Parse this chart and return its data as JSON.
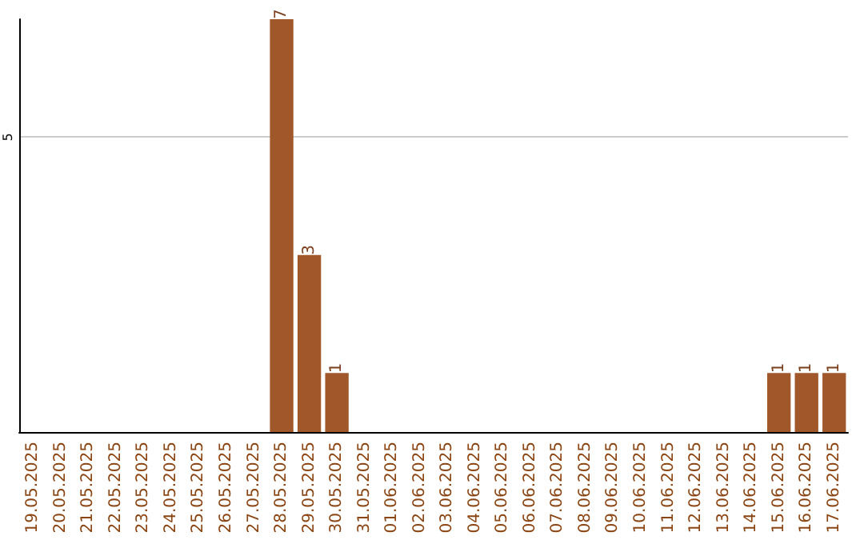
{
  "chart_data": {
    "type": "bar",
    "categories": [
      "19.05.2025",
      "20.05.2025",
      "21.05.2025",
      "22.05.2025",
      "23.05.2025",
      "24.05.2025",
      "25.05.2025",
      "26.05.2025",
      "27.05.2025",
      "28.05.2025",
      "29.05.2025",
      "30.05.2025",
      "31.05.2025",
      "01.06.2025",
      "02.06.2025",
      "03.06.2025",
      "04.06.2025",
      "05.06.2025",
      "06.06.2025",
      "07.06.2025",
      "08.06.2025",
      "09.06.2025",
      "10.06.2025",
      "11.06.2025",
      "12.06.2025",
      "13.06.2025",
      "14.06.2025",
      "15.06.2025",
      "16.06.2025",
      "17.06.2025"
    ],
    "values": [
      0,
      0,
      0,
      0,
      0,
      0,
      0,
      0,
      0,
      7,
      3,
      1,
      0,
      0,
      0,
      0,
      0,
      0,
      0,
      0,
      0,
      0,
      0,
      0,
      0,
      0,
      0,
      1,
      1,
      1
    ],
    "value_labels": [
      null,
      null,
      null,
      null,
      null,
      null,
      null,
      null,
      null,
      "7",
      "3",
      "1",
      null,
      null,
      null,
      null,
      null,
      null,
      null,
      null,
      null,
      null,
      null,
      null,
      null,
      null,
      null,
      "1",
      "1",
      "1"
    ],
    "color": "#a0582a",
    "ylim": [
      0,
      7
    ],
    "yticks": [
      5
    ],
    "grid": "y"
  }
}
